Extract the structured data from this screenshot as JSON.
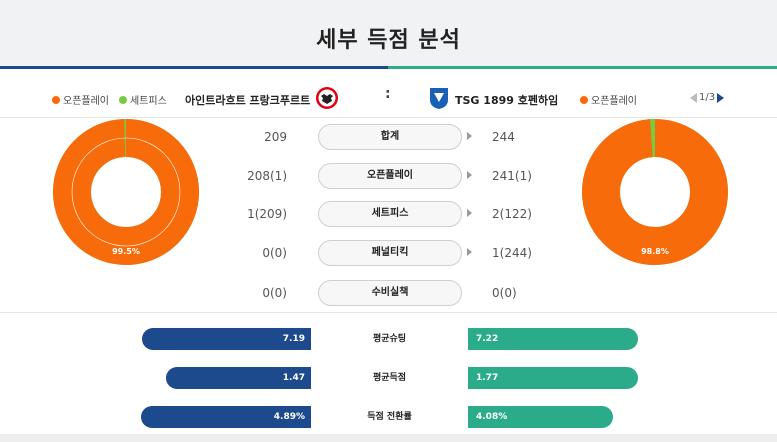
{
  "title": "세부 득점 분석",
  "legend_left": {
    "openplay": "오픈플레이",
    "setpiece": "세트피스"
  },
  "legend_right": {
    "openplay": "오픈플레이"
  },
  "home_team": {
    "name": "아인트라흐트 프랑크푸르트"
  },
  "vs": ":",
  "away_team": {
    "name": "TSG 1899 호펜하임"
  },
  "pager": {
    "text": "1/3"
  },
  "home_donut": {
    "label": "99.5%",
    "openplay_pct": 99.5,
    "setpiece_pct": 0.5
  },
  "away_donut": {
    "label": "98.8%",
    "openplay_pct": 98.8,
    "setpiece_pct": 1.2
  },
  "rows": [
    {
      "label": "합계",
      "home": "209",
      "away": "244"
    },
    {
      "label": "오픈플레이",
      "home": "208(1)",
      "away": "241(1)"
    },
    {
      "label": "세트피스",
      "home": "1(209)",
      "away": "2(122)"
    },
    {
      "label": "페널티킥",
      "home": "0(0)",
      "away": "1(244)"
    },
    {
      "label": "수비실책",
      "home": "0(0)",
      "away": "0(0)"
    }
  ],
  "stats": [
    {
      "label": "평균슈팅",
      "home": "7.19",
      "away": "7.22",
      "home_value": 7.19,
      "away_value": 7.22
    },
    {
      "label": "평균득점",
      "home": "1.47",
      "away": "1.77",
      "home_value": 1.47,
      "away_value": 1.77
    },
    {
      "label": "득점 전환률",
      "home": "4.89%",
      "away": "4.08%",
      "home_value": 4.89,
      "away_value": 4.08
    }
  ],
  "colors": {
    "home": "#1c4a8c",
    "away": "#2aab8a",
    "openplay": "#f76b0a",
    "setpiece": "#7ac943"
  }
}
